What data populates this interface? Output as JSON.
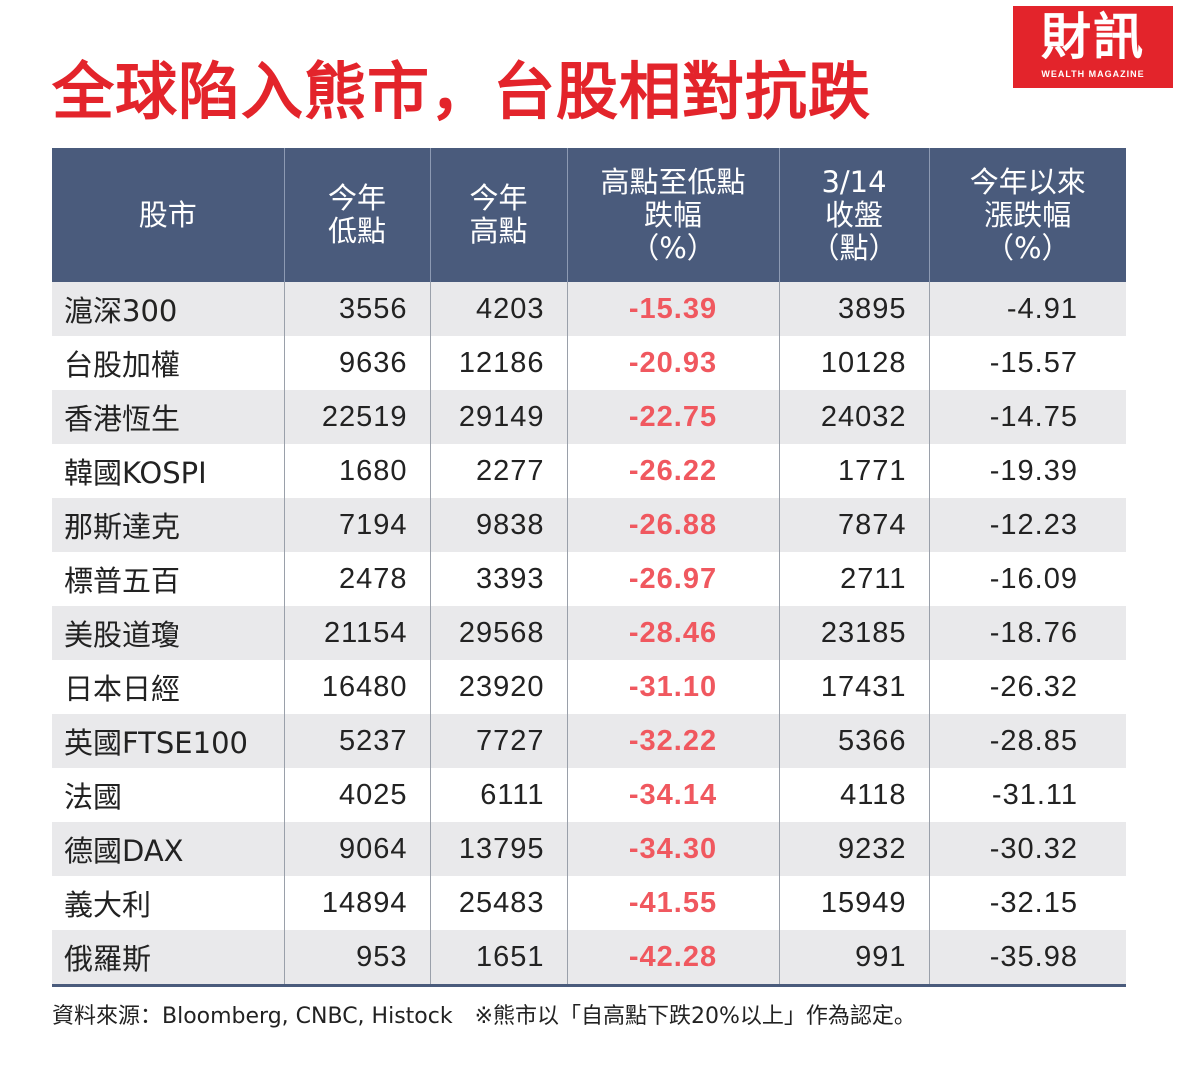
{
  "title": "全球陷入熊市，台股相對抗跌",
  "logo": {
    "main": "財訊",
    "sub": "WEALTH MAGAZINE"
  },
  "headers": [
    [
      "股市"
    ],
    [
      "今年",
      "低點"
    ],
    [
      "今年",
      "高點"
    ],
    [
      "高點至低點",
      "跌幅",
      "（%）"
    ],
    [
      "3/14",
      "收盤",
      "（點）"
    ],
    [
      "今年以來",
      "漲跌幅",
      "（%）"
    ]
  ],
  "rows": [
    {
      "market": "滬深300",
      "low": "3556",
      "high": "4203",
      "drop": "-15.39",
      "close": "3895",
      "ytd": "-4.91"
    },
    {
      "market": "台股加權",
      "low": "9636",
      "high": "12186",
      "drop": "-20.93",
      "close": "10128",
      "ytd": "-15.57"
    },
    {
      "market": "香港恆生",
      "low": "22519",
      "high": "29149",
      "drop": "-22.75",
      "close": "24032",
      "ytd": "-14.75"
    },
    {
      "market": "韓國KOSPI",
      "low": "1680",
      "high": "2277",
      "drop": "-26.22",
      "close": "1771",
      "ytd": "-19.39"
    },
    {
      "market": "那斯達克",
      "low": "7194",
      "high": "9838",
      "drop": "-26.88",
      "close": "7874",
      "ytd": "-12.23"
    },
    {
      "market": "標普五百",
      "low": "2478",
      "high": "3393",
      "drop": "-26.97",
      "close": "2711",
      "ytd": "-16.09"
    },
    {
      "market": "美股道瓊",
      "low": "21154",
      "high": "29568",
      "drop": "-28.46",
      "close": "23185",
      "ytd": "-18.76"
    },
    {
      "market": "日本日經",
      "low": "16480",
      "high": "23920",
      "drop": "-31.10",
      "close": "17431",
      "ytd": "-26.32"
    },
    {
      "market": "英國FTSE100",
      "low": "5237",
      "high": "7727",
      "drop": "-32.22",
      "close": "5366",
      "ytd": "-28.85"
    },
    {
      "market": "法國",
      "low": "4025",
      "high": "6111",
      "drop": "-34.14",
      "close": "4118",
      "ytd": "-31.11"
    },
    {
      "market": "德國DAX",
      "low": "9064",
      "high": "13795",
      "drop": "-34.30",
      "close": "9232",
      "ytd": "-30.32"
    },
    {
      "market": "義大利",
      "low": "14894",
      "high": "25483",
      "drop": "-41.55",
      "close": "15949",
      "ytd": "-32.15"
    },
    {
      "market": "俄羅斯",
      "low": "953",
      "high": "1651",
      "drop": "-42.28",
      "close": "991",
      "ytd": "-35.98"
    }
  ],
  "footer": {
    "source": "資料來源：Bloomberg, CNBC, Histock",
    "note": "※熊市以「自高點下跌20%以上」作為認定。"
  },
  "colors": {
    "accent": "#e3242b",
    "header_bg": "#4a5b7c",
    "drop_text": "#f0585f",
    "row_shade": "#e9e9eb"
  }
}
